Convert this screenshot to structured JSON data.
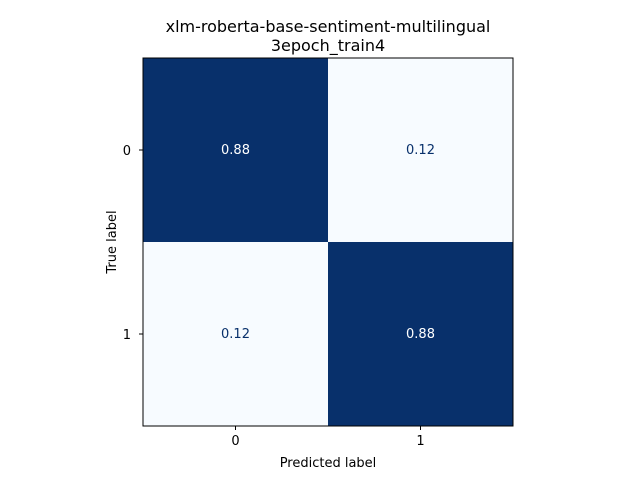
{
  "chart_data": {
    "type": "heatmap",
    "title_lines": [
      "xlm-roberta-base-sentiment-multilingual",
      "3epoch_train4"
    ],
    "xlabel": "Predicted label",
    "ylabel": "True label",
    "x_categories": [
      "0",
      "1"
    ],
    "y_categories": [
      "0",
      "1"
    ],
    "matrix": [
      [
        0.88,
        0.12
      ],
      [
        0.12,
        0.88
      ]
    ],
    "cell_labels": [
      [
        "0.88",
        "0.12"
      ],
      [
        "0.12",
        "0.88"
      ]
    ],
    "colormap": {
      "low": "#f7fbff",
      "high": "#08306b"
    },
    "text_colors": {
      "on_dark": "#ffffff",
      "on_light": "#08306b"
    },
    "value_range": [
      0.12,
      0.88
    ],
    "grid": false,
    "legend": "none"
  }
}
